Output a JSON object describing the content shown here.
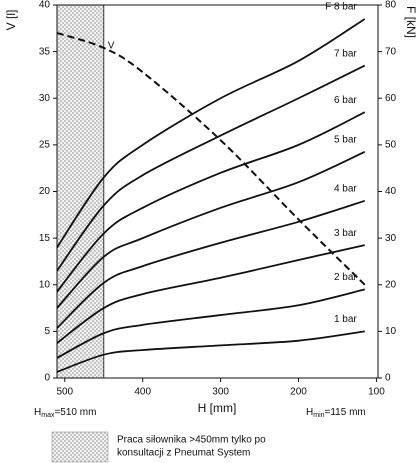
{
  "chart_data": {
    "type": "line",
    "x_label": "H [mm]",
    "y_label": "V [l]",
    "y2_label": "F [kN]",
    "x": [
      510,
      450,
      400,
      300,
      200,
      115
    ],
    "xlim": [
      510,
      98
    ],
    "xticks": [
      500,
      400,
      300,
      200,
      100
    ],
    "ylim": [
      0,
      40
    ],
    "yticks": [
      0,
      5,
      10,
      15,
      20,
      25,
      30,
      35,
      40
    ],
    "y2lim": [
      0,
      80
    ],
    "y2ticks": [
      0,
      10,
      20,
      30,
      40,
      50,
      60,
      70,
      80
    ],
    "series": [
      {
        "name": "F 8 bar",
        "color": "#111111",
        "axis": "y2",
        "values": [
          28,
          43,
          50,
          60,
          68,
          77
        ]
      },
      {
        "name": "7 bar",
        "color": "#111111",
        "axis": "y2",
        "values": [
          23,
          37,
          43.5,
          52,
          60,
          67
        ]
      },
      {
        "name": "6 bar",
        "color": "#111111",
        "axis": "y2",
        "values": [
          18.5,
          31,
          36.5,
          44,
          50,
          57
        ]
      },
      {
        "name": "5 bar",
        "color": "#111111",
        "axis": "y2",
        "values": [
          15,
          26,
          30,
          36.5,
          42,
          48.5
        ]
      },
      {
        "name": "4 bar",
        "color": "#111111",
        "axis": "y2",
        "values": [
          10.7,
          20.4,
          24,
          29,
          33.5,
          38
        ]
      },
      {
        "name": "3 bar",
        "color": "#111111",
        "axis": "y2",
        "values": [
          7.5,
          15,
          18,
          21.5,
          25.3,
          28.5
        ]
      },
      {
        "name": "2 bar",
        "color": "#111111",
        "axis": "y2",
        "values": [
          4.3,
          9.6,
          11.4,
          13.5,
          15.6,
          19
        ]
      },
      {
        "name": "1 bar",
        "color": "#111111",
        "axis": "y2",
        "values": [
          1.3,
          5,
          6,
          7,
          8,
          10
        ]
      },
      {
        "name": "V",
        "color": "#111111",
        "dashed": true,
        "values": [
          37,
          35.4,
          32.8,
          25.5,
          17,
          10
        ]
      }
    ],
    "hatched_region": [
      510,
      450
    ],
    "annotations": {
      "hmax": {
        "base": "H",
        "sub": "max",
        "rest": "=510 mm"
      },
      "hmin": {
        "base": "H",
        "sub": "min",
        "rest": "=115 mm"
      },
      "note": [
        "Praca siłownika >450mm tylko po",
        "konsultacji z Pneumat System"
      ]
    }
  }
}
